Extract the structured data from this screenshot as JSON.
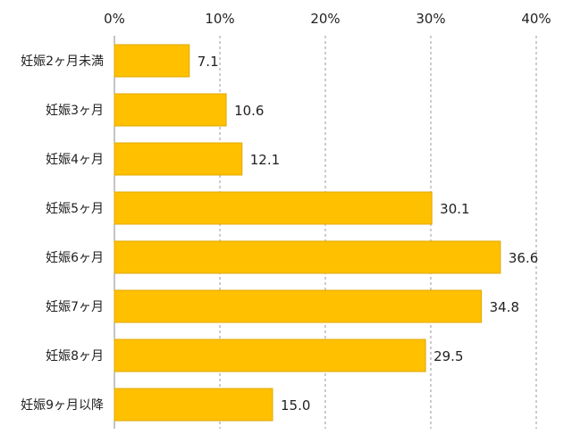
{
  "chart_data": {
    "type": "bar",
    "orientation": "horizontal",
    "title": "",
    "xlabel": "",
    "ylabel": "",
    "categories": [
      "妊娠2ヶ月未満",
      "妊娠3ヶ月",
      "妊娠4ヶ月",
      "妊娠5ヶ月",
      "妊娠6ヶ月",
      "妊娠7ヶ月",
      "妊娠8ヶ月",
      "妊娠9ヶ月以降"
    ],
    "values": [
      7.1,
      10.6,
      12.1,
      30.1,
      36.6,
      34.8,
      29.5,
      15.0
    ],
    "value_labels": [
      "7.1",
      "10.6",
      "12.1",
      "30.1",
      "36.6",
      "34.8",
      "29.5",
      "15.0"
    ],
    "xlim": [
      0,
      40
    ],
    "xticks": [
      0,
      10,
      20,
      30,
      40
    ],
    "xtick_labels": [
      "0%",
      "10%",
      "20%",
      "30%",
      "40%"
    ],
    "x_axis_position": "top",
    "grid": "vertical dashed",
    "legend": "none",
    "bar_color": "#FFC000",
    "bar_edge_color": "#E0A800",
    "grid_color": "#999999",
    "axis_color": "#888888"
  }
}
